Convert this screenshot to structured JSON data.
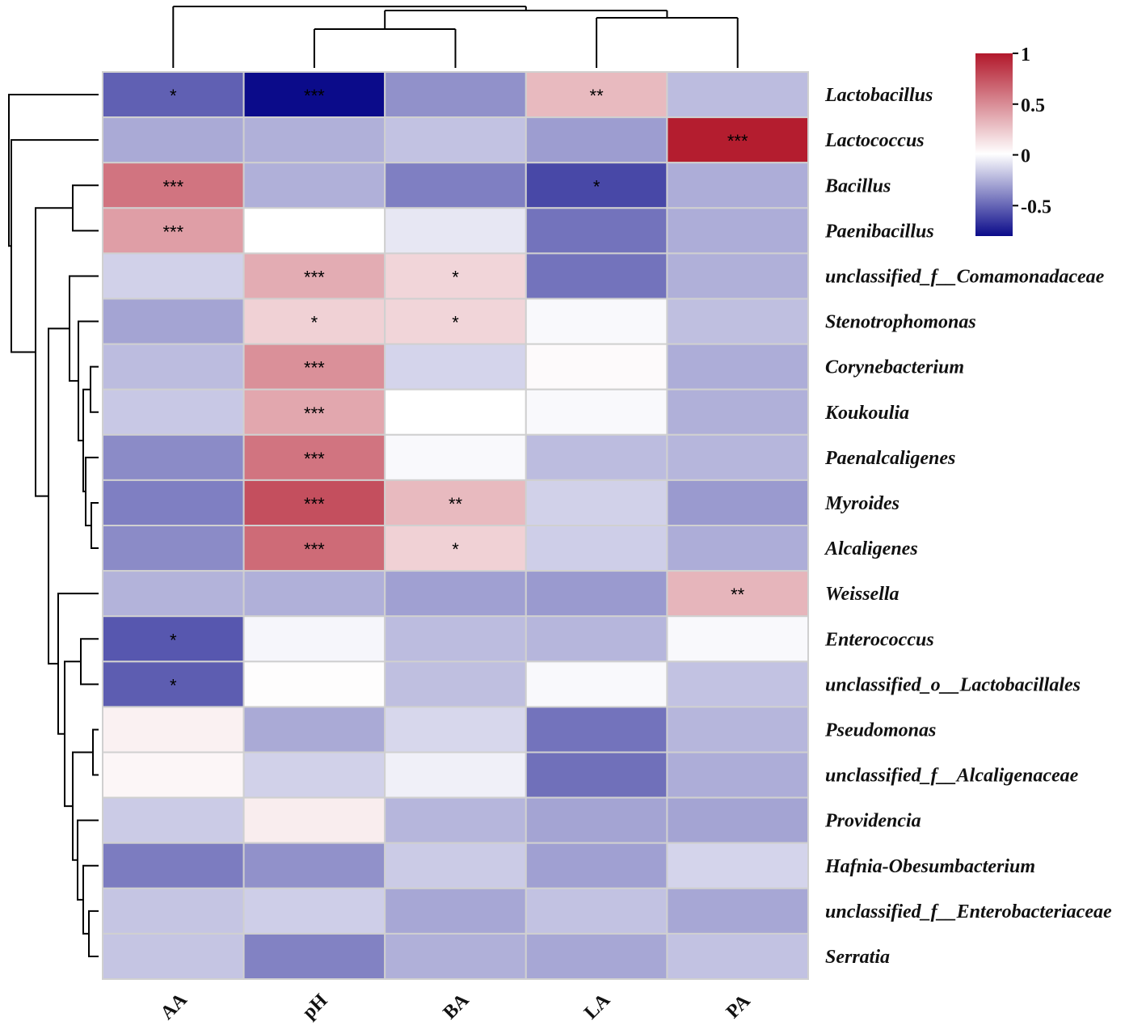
{
  "chart_data": {
    "type": "heatmap",
    "columns": [
      "AA",
      "pH",
      "BA",
      "LA",
      "PA"
    ],
    "rows": [
      "Lactobacillus",
      "Lactococcus",
      "Bacillus",
      "Paenibacillus",
      "unclassified_f__Comamonadaceae",
      "Stenotrophomonas",
      "Corynebacterium",
      "Koukoulia",
      "Paenalcaligenes",
      "Myroides",
      "Alcaligenes",
      "Weissella",
      "Enterococcus",
      "unclassified_o__Lactobacillales",
      "Pseudomonas",
      "unclassified_f__Alcaligenaceae",
      "Providencia",
      "Hafnia-Obesumbacterium",
      "unclassified_f__Enterobacteriaceae",
      "Serratia"
    ],
    "values": [
      [
        -0.52,
        -0.8,
        -0.36,
        0.3,
        -0.22
      ],
      [
        -0.28,
        -0.26,
        -0.2,
        -0.32,
        0.98
      ],
      [
        0.6,
        -0.26,
        -0.42,
        -0.6,
        -0.27
      ],
      [
        0.42,
        0.0,
        -0.08,
        -0.46,
        -0.27
      ],
      [
        -0.15,
        0.36,
        0.18,
        -0.46,
        -0.26
      ],
      [
        -0.3,
        0.2,
        0.18,
        -0.02,
        -0.21
      ],
      [
        -0.22,
        0.48,
        -0.14,
        0.02,
        -0.27
      ],
      [
        -0.18,
        0.38,
        0.0,
        -0.02,
        -0.26
      ],
      [
        -0.38,
        0.6,
        -0.02,
        -0.22,
        -0.24
      ],
      [
        -0.42,
        0.76,
        0.3,
        -0.15,
        -0.33
      ],
      [
        -0.38,
        0.64,
        0.2,
        -0.16,
        -0.27
      ],
      [
        -0.25,
        -0.26,
        -0.31,
        -0.33,
        0.32
      ],
      [
        -0.55,
        -0.03,
        -0.22,
        -0.24,
        -0.02
      ],
      [
        -0.53,
        0.01,
        -0.21,
        -0.02,
        -0.2
      ],
      [
        0.06,
        -0.28,
        -0.13,
        -0.46,
        -0.24
      ],
      [
        0.04,
        -0.15,
        -0.05,
        -0.47,
        -0.27
      ],
      [
        -0.17,
        0.08,
        -0.24,
        -0.3,
        -0.3
      ],
      [
        -0.43,
        -0.36,
        -0.17,
        -0.31,
        -0.14
      ],
      [
        -0.19,
        -0.16,
        -0.29,
        -0.2,
        -0.29
      ],
      [
        -0.19,
        -0.41,
        -0.26,
        -0.29,
        -0.2
      ]
    ],
    "significance": [
      [
        "*",
        "***",
        "",
        "**",
        ""
      ],
      [
        "",
        "",
        "",
        "",
        "***"
      ],
      [
        "***",
        "",
        "",
        "*",
        ""
      ],
      [
        "***",
        "",
        "",
        "",
        ""
      ],
      [
        "",
        "***",
        "*",
        "",
        ""
      ],
      [
        "",
        "*",
        "*",
        "",
        ""
      ],
      [
        "",
        "***",
        "",
        "",
        ""
      ],
      [
        "",
        "***",
        "",
        "",
        ""
      ],
      [
        "",
        "***",
        "",
        "",
        ""
      ],
      [
        "",
        "***",
        "**",
        "",
        ""
      ],
      [
        "",
        "***",
        "*",
        "",
        ""
      ],
      [
        "",
        "",
        "",
        "",
        "**"
      ],
      [
        "*",
        "",
        "",
        "",
        ""
      ],
      [
        "*",
        "",
        "",
        "",
        ""
      ],
      [
        "",
        "",
        "",
        "",
        ""
      ],
      [
        "",
        "",
        "",
        "",
        ""
      ],
      [
        "",
        "",
        "",
        "",
        ""
      ],
      [
        "",
        "",
        "",
        "",
        ""
      ],
      [
        "",
        "",
        "",
        "",
        ""
      ],
      [
        "",
        "",
        "",
        "",
        ""
      ]
    ],
    "color_scale": {
      "min": -0.8,
      "max": 1,
      "low_color": "#0b0b8a",
      "mid_color": "#ffffff",
      "high_color": "#b2182b",
      "ticks": [
        1,
        0.5,
        0,
        -0.5
      ],
      "tick_labels": [
        "1",
        "0.5",
        "0",
        "-0.5"
      ]
    },
    "grid_color": "#d0d0d0",
    "legend_position": "top-right",
    "row_dendrogram": true,
    "column_dendrogram": true
  }
}
